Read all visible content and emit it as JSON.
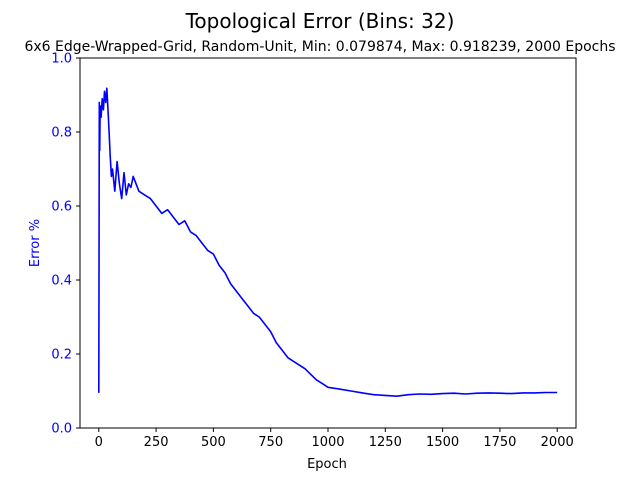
{
  "colors": {
    "series": "#0000ff",
    "y_axis_text": "#0000ff",
    "x_axis_text": "#000000",
    "frame": "#000000",
    "background": "#ffffff"
  },
  "chart_data": {
    "type": "line",
    "title": "Topological Error (Bins: 32)",
    "subtitle": "6x6 Edge-Wrapped-Grid, Random-Unit, Min: 0.079874, Max: 0.918239, 2000 Epochs",
    "xlabel": "Epoch",
    "ylabel": "Error %",
    "xlim": [
      -82,
      2082
    ],
    "ylim": [
      0.0,
      1.0
    ],
    "x_ticks": [
      0,
      250,
      500,
      750,
      1000,
      1250,
      1500,
      1750,
      2000
    ],
    "x_tick_labels": [
      "0",
      "250",
      "500",
      "750",
      "1000",
      "1250",
      "1500",
      "1750",
      "2000"
    ],
    "y_ticks": [
      0.0,
      0.2,
      0.4,
      0.6,
      0.8,
      1.0
    ],
    "y_tick_labels": [
      "0.0",
      "0.2",
      "0.4",
      "0.6",
      "0.8",
      "1.0"
    ],
    "grid": false,
    "legend": "none",
    "series": [
      {
        "x": [
          0,
          2,
          4,
          6,
          10,
          15,
          20,
          25,
          30,
          35,
          40,
          45,
          50,
          55,
          60,
          70,
          80,
          90,
          100,
          110,
          120,
          130,
          140,
          150,
          175,
          200,
          225,
          250,
          275,
          300,
          325,
          350,
          375,
          400,
          425,
          450,
          475,
          500,
          525,
          550,
          575,
          600,
          625,
          650,
          675,
          700,
          725,
          750,
          775,
          800,
          825,
          850,
          875,
          900,
          925,
          950,
          975,
          1000,
          1050,
          1100,
          1150,
          1200,
          1250,
          1300,
          1350,
          1400,
          1450,
          1500,
          1550,
          1600,
          1650,
          1700,
          1750,
          1800,
          1850,
          1900,
          1950,
          2000
        ],
        "y": [
          0.095,
          0.88,
          0.75,
          0.87,
          0.84,
          0.89,
          0.86,
          0.91,
          0.88,
          0.918,
          0.86,
          0.8,
          0.73,
          0.68,
          0.7,
          0.64,
          0.72,
          0.66,
          0.62,
          0.69,
          0.63,
          0.66,
          0.65,
          0.68,
          0.64,
          0.63,
          0.62,
          0.6,
          0.58,
          0.59,
          0.57,
          0.55,
          0.56,
          0.53,
          0.52,
          0.5,
          0.48,
          0.47,
          0.44,
          0.42,
          0.39,
          0.37,
          0.35,
          0.33,
          0.31,
          0.3,
          0.28,
          0.26,
          0.23,
          0.21,
          0.19,
          0.18,
          0.17,
          0.16,
          0.145,
          0.13,
          0.12,
          0.11,
          0.105,
          0.1,
          0.095,
          0.09,
          0.088,
          0.086,
          0.09,
          0.092,
          0.091,
          0.093,
          0.094,
          0.092,
          0.094,
          0.095,
          0.094,
          0.093,
          0.095,
          0.095,
          0.096,
          0.096
        ]
      }
    ]
  }
}
